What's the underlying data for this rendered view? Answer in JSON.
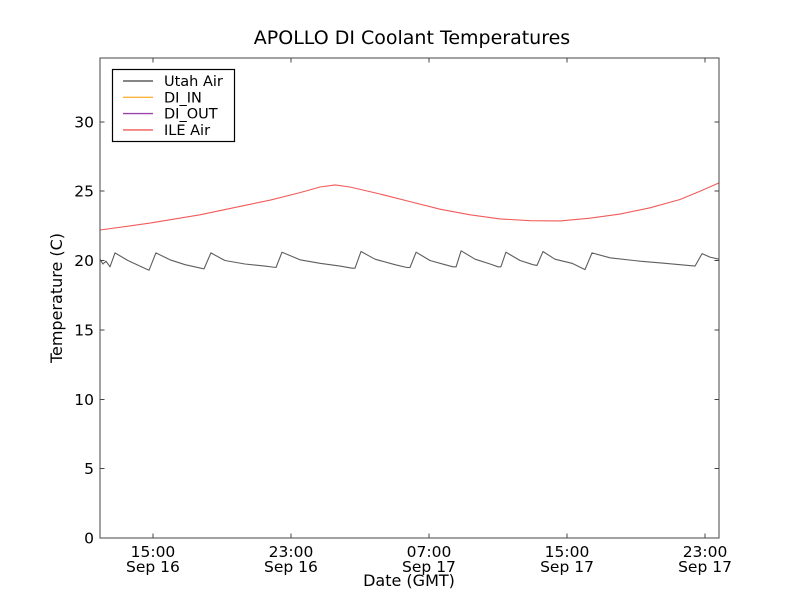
{
  "colors": {
    "background": "#ffffff",
    "frame": "#444444",
    "text": "#000000",
    "legend_border": "#000000",
    "legend_fill": "#ffffff"
  },
  "chart_data": {
    "type": "line",
    "title": "APOLLO DI Coolant Temperatures",
    "xlabel": "Date (GMT)",
    "ylabel": "Temperature (C)",
    "grid": false,
    "legend_position": "upper left",
    "legend_entries": [
      "Utah Air",
      "DI_IN",
      "DI_OUT",
      "ILE Air"
    ],
    "x_unit": "hours since Sep 16 00:00 GMT",
    "xlim": [
      11.93,
      47.81
    ],
    "ylim": [
      0,
      34.6
    ],
    "y_ticks": [
      0,
      5,
      10,
      15,
      20,
      25,
      30
    ],
    "x_ticks": [
      {
        "hour": 15,
        "line1": "15:00",
        "line2": "Sep 16"
      },
      {
        "hour": 23,
        "line1": "23:00",
        "line2": "Sep 16"
      },
      {
        "hour": 31,
        "line1": "07:00",
        "line2": "Sep 17"
      },
      {
        "hour": 39,
        "line1": "15:00",
        "line2": "Sep 17"
      },
      {
        "hour": 47,
        "line1": "23:00",
        "line2": "Sep 17"
      }
    ],
    "series": [
      {
        "name": "Utah Air",
        "color": "#5e5e5e",
        "visible": true,
        "x": [
          11.93,
          12.1,
          12.28,
          12.51,
          12.8,
          13.55,
          14.25,
          14.77,
          15.17,
          15.99,
          16.86,
          17.78,
          17.96,
          18.36,
          19.17,
          20.33,
          21.49,
          22.13,
          22.48,
          23.52,
          24.68,
          25.84,
          26.54,
          26.71,
          27.06,
          27.87,
          29.03,
          29.72,
          29.9,
          30.25,
          31.06,
          31.93,
          32.39,
          32.57,
          32.86,
          33.67,
          34.54,
          35.0,
          35.17,
          35.46,
          36.28,
          37.03,
          37.26,
          37.61,
          38.3,
          39.29,
          40.04,
          40.45,
          41.49,
          43.23,
          44.68,
          46.42,
          46.83,
          47.29,
          47.81
        ],
        "y": [
          20.1,
          19.75,
          19.95,
          19.55,
          20.55,
          20.0,
          19.6,
          19.3,
          20.55,
          20.05,
          19.7,
          19.45,
          19.4,
          20.55,
          20.0,
          19.75,
          19.6,
          19.5,
          20.6,
          20.05,
          19.8,
          19.6,
          19.45,
          19.45,
          20.65,
          20.1,
          19.7,
          19.5,
          19.5,
          20.6,
          20.0,
          19.7,
          19.55,
          19.55,
          20.7,
          20.1,
          19.75,
          19.55,
          19.55,
          20.6,
          20.0,
          19.7,
          19.65,
          20.65,
          20.1,
          19.8,
          19.35,
          20.55,
          20.2,
          19.95,
          19.8,
          19.6,
          20.5,
          20.25,
          20.1
        ]
      },
      {
        "name": "DI_IN",
        "color": "#fdb43c",
        "visible": false,
        "x": [],
        "y": []
      },
      {
        "name": "DI_OUT",
        "color": "#9c42aa",
        "visible": false,
        "x": [],
        "y": []
      },
      {
        "name": "ILE Air",
        "color": "#f15b5b",
        "visible": true,
        "x": [
          11.93,
          14.83,
          17.72,
          20.04,
          21.78,
          23.52,
          24.68,
          25.55,
          26.42,
          28.16,
          29.9,
          31.64,
          33.38,
          35.12,
          36.86,
          38.6,
          40.33,
          42.07,
          43.81,
          45.55,
          46.71,
          47.81
        ],
        "y": [
          22.2,
          22.7,
          23.3,
          23.9,
          24.35,
          24.9,
          25.3,
          25.45,
          25.3,
          24.8,
          24.25,
          23.7,
          23.3,
          23.0,
          22.87,
          22.86,
          23.05,
          23.35,
          23.8,
          24.4,
          25.0,
          25.6
        ]
      }
    ]
  }
}
